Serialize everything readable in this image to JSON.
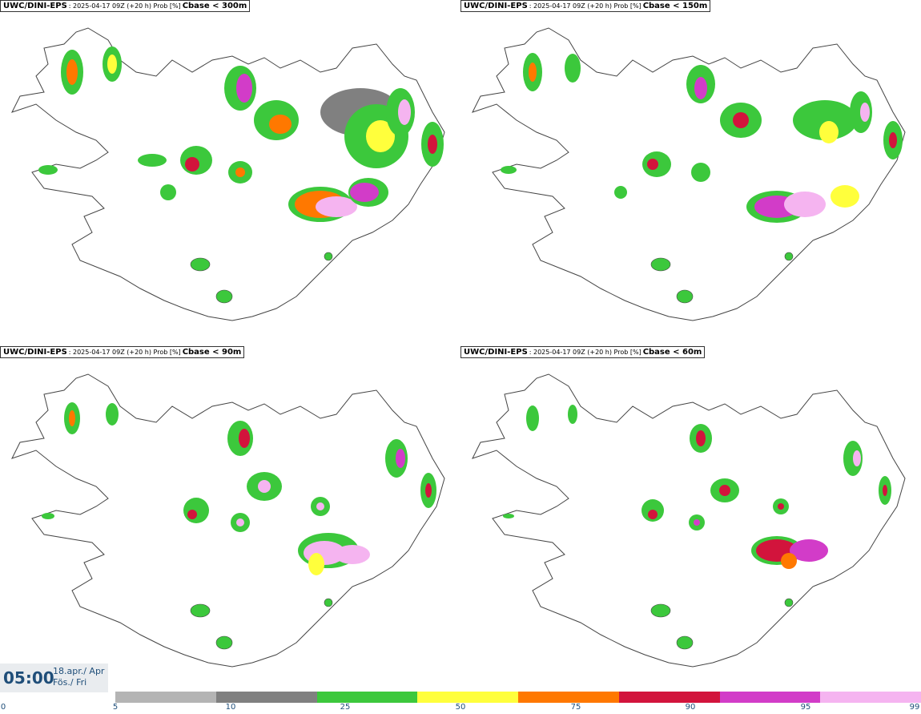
{
  "panels": [
    {
      "model": "UWC/DINI-EPS",
      "meta": ": 2025-04-17 09Z (+20 h) Prob [%]",
      "cbase": "Cbase < 300m"
    },
    {
      "model": "UWC/DINI-EPS",
      "meta": ": 2025-04-17 09Z (+20 h) Prob [%]",
      "cbase": "Cbase < 150m"
    },
    {
      "model": "UWC/DINI-EPS",
      "meta": ": 2025-04-17 09Z (+20 h) Prob [%]",
      "cbase": "Cbase < 90m"
    },
    {
      "model": "UWC/DINI-EPS",
      "meta": ": 2025-04-17 09Z (+20 h) Prob [%]",
      "cbase": "Cbase < 60m"
    }
  ],
  "time": {
    "clock": "05:00",
    "date": "18.apr./ Apr",
    "day": "Fös./ Fri"
  },
  "legend": {
    "ticks": [
      "0",
      "5",
      "10",
      "25",
      "50",
      "75",
      "90",
      "95",
      "99"
    ],
    "colors": [
      "#b4b4b4",
      "#808080",
      "#3cc83c",
      "#ffff3c",
      "#ff7800",
      "#d2143c",
      "#d23cc8",
      "#f5b4f0"
    ]
  }
}
